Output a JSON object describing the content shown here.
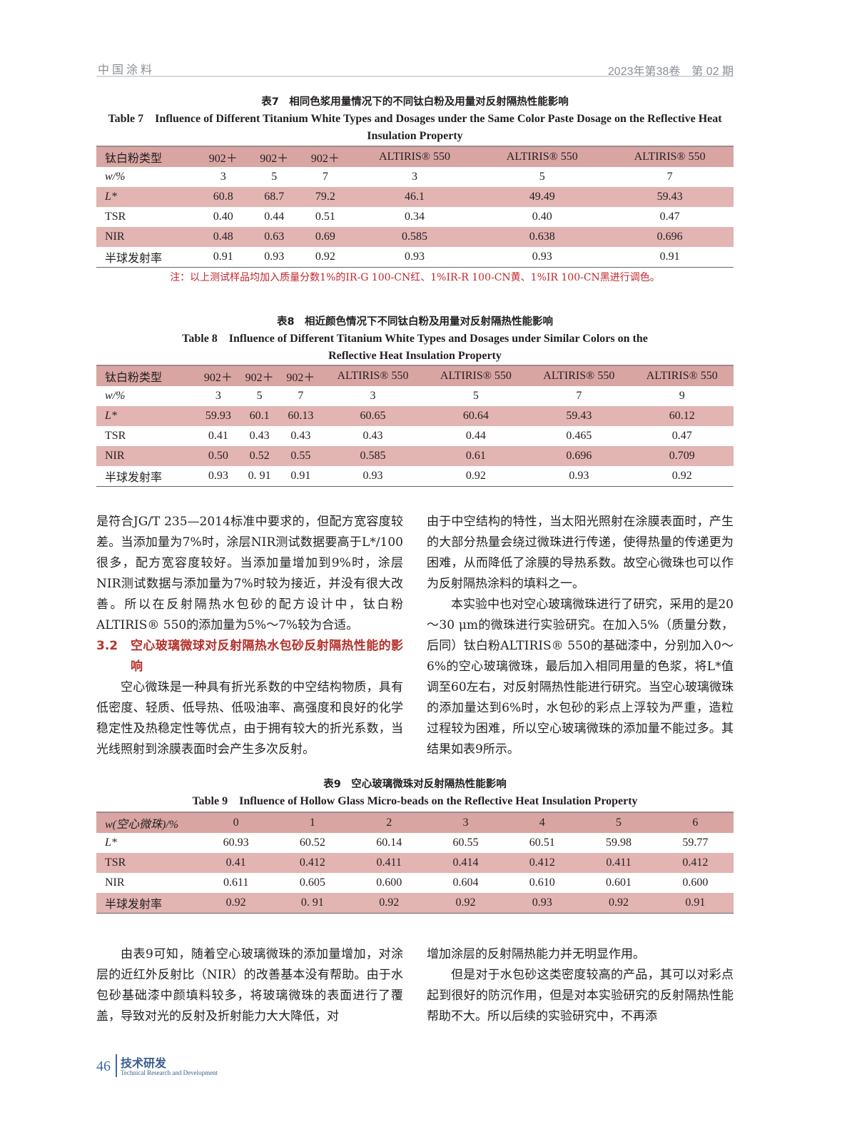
{
  "header": {
    "journal": "中国涂料",
    "issue": "2023年第38卷　第 02 期"
  },
  "table7": {
    "caption_cn": "表7　相同色浆用量情况下的不同钛白粉及用量对反射隔热性能影响",
    "caption_en": "Table 7　Influence of Different Titanium White Types and Dosages under the Same Color Paste Dosage on the Reflective Heat Insulation Property",
    "columns": [
      "钛白粉类型",
      "902＋",
      "902＋",
      "902＋",
      "ALTIRIS® 550",
      "ALTIRIS® 550",
      "ALTIRIS® 550"
    ],
    "rows": [
      [
        "w/%",
        "3",
        "5",
        "7",
        "3",
        "5",
        "7"
      ],
      [
        "L*",
        "60.8",
        "68.7",
        "79.2",
        "46.1",
        "49.49",
        "59.43"
      ],
      [
        "TSR",
        "0.40",
        "0.44",
        "0.51",
        "0.34",
        "0.40",
        "0.47"
      ],
      [
        "NIR",
        "0.48",
        "0.63",
        "0.69",
        "0.585",
        "0.638",
        "0.696"
      ],
      [
        "半球发射率",
        "0.91",
        "0.93",
        "0.92",
        "0.93",
        "0.93",
        "0.91"
      ]
    ],
    "note": "注：以上测试样品均加入质量分数1%的IR-G 100-CN红、1%IR-R 100-CN黄、1%IR 100-CN黑进行调色。"
  },
  "table8": {
    "caption_cn": "表8　相近颜色情况下不同钛白粉及用量对反射隔热性能影响",
    "caption_en": "Table 8　Influence of Different Titanium White Types and Dosages under Similar Colors on the Reflective Heat Insulation Property",
    "columns": [
      "钛白粉类型",
      "902＋",
      "902＋",
      "902＋",
      "ALTIRIS® 550",
      "ALTIRIS® 550",
      "ALTIRIS® 550",
      "ALTIRIS® 550"
    ],
    "rows": [
      [
        "w/%",
        "3",
        "5",
        "7",
        "3",
        "5",
        "7",
        "9"
      ],
      [
        "L*",
        "59.93",
        "60.1",
        "60.13",
        "60.65",
        "60.64",
        "59.43",
        "60.12"
      ],
      [
        "TSR",
        "0.41",
        "0.43",
        "0.43",
        "0.43",
        "0.44",
        "0.465",
        "0.47"
      ],
      [
        "NIR",
        "0.50",
        "0.52",
        "0.55",
        "0.585",
        "0.61",
        "0.696",
        "0.709"
      ],
      [
        "半球发射率",
        "0.93",
        "0. 91",
        "0.91",
        "0.93",
        "0.92",
        "0.93",
        "0.92"
      ]
    ]
  },
  "body_left": {
    "p1": "是符合JG/T 235—2014标准中要求的，但配方宽容度较差。当添加量为7%时，涂层NIR测试数据要高于L*/100很多，配方宽容度较好。当添加量增加到9%时，涂层NIR测试数据与添加量为7%时较为接近，并没有很大改善。所以在反射隔热水包砂的配方设计中，钛白粉ALTIRIS® 550的添加量为5%～7%较为合适。",
    "section_num": "3.2",
    "section_title": "空心玻璃微球对反射隔热水包砂反射隔热性能的影响",
    "p2": "空心微珠是一种具有折光系数的中空结构物质，具有低密度、轻质、低导热、低吸油率、高强度和良好的化学稳定性及热稳定性等优点，由于拥有较大的折光系数，当光线照射到涂膜表面时会产生多次反射。"
  },
  "body_right": {
    "p1": "由于中空结构的特性，当太阳光照射在涂膜表面时，产生的大部分热量会绕过微珠进行传递，使得热量的传递更为困难，从而降低了涂膜的导热系数。故空心微珠也可以作为反射隔热涂料的填料之一。",
    "p2": "本实验中也对空心玻璃微珠进行了研究，采用的是20～30 μm的微珠进行实验研究。在加入5%（质量分数，后同）钛白粉ALTIRIS® 550的基础漆中，分别加入0～6%的空心玻璃微珠，最后加入相同用量的色浆，将L*值调至60左右，对反射隔热性能进行研究。当空心玻璃微珠的添加量达到6%时，水包砂的彩点上浮较为严重，造粒过程较为困难，所以空心玻璃微珠的添加量不能过多。其结果如表9所示。"
  },
  "table9": {
    "caption_cn": "表9　空心玻璃微珠对反射隔热性能影响",
    "caption_en": "Table 9　Influence of Hollow Glass Micro-beads on the Reflective Heat Insulation Property",
    "columns": [
      "w(空心微珠)/%",
      "0",
      "1",
      "2",
      "3",
      "4",
      "5",
      "6"
    ],
    "rows": [
      [
        "L*",
        "60.93",
        "60.52",
        "60.14",
        "60.55",
        "60.51",
        "59.98",
        "59.77"
      ],
      [
        "TSR",
        "0.41",
        "0.412",
        "0.411",
        "0.414",
        "0.412",
        "0.411",
        "0.412"
      ],
      [
        "NIR",
        "0.611",
        "0.605",
        "0.600",
        "0.604",
        "0.610",
        "0.601",
        "0.600"
      ],
      [
        "半球发射率",
        "0.92",
        "0. 91",
        "0.92",
        "0.92",
        "0.93",
        "0.92",
        "0.91"
      ]
    ]
  },
  "bottom_left": {
    "p1": "由表9可知，随着空心玻璃微珠的添加量增加，对涂层的近红外反射比（NIR）的改善基本没有帮助。由于水包砂基础漆中颜填料较多，将玻璃微珠的表面进行了覆盖，导致对光的反射及折射能力大大降低，对"
  },
  "bottom_right": {
    "p1": "增加涂层的反射隔热能力并无明显作用。",
    "p2": "但是对于水包砂这类密度较高的产品，其可以对彩点起到很好的防沉作用，但是对本实验研究的反射隔热性能帮助不大。所以后续的实验研究中，不再添"
  },
  "footer": {
    "page": "46",
    "section_cn": "技术研发",
    "section_en": "Technical Research and Development"
  },
  "colors": {
    "table_header": "#d9a5a3",
    "table_stripe": "#e2b4b2",
    "section_heading": "#b5312b",
    "note": "#c0272d",
    "footer": "#3f6aa0"
  }
}
